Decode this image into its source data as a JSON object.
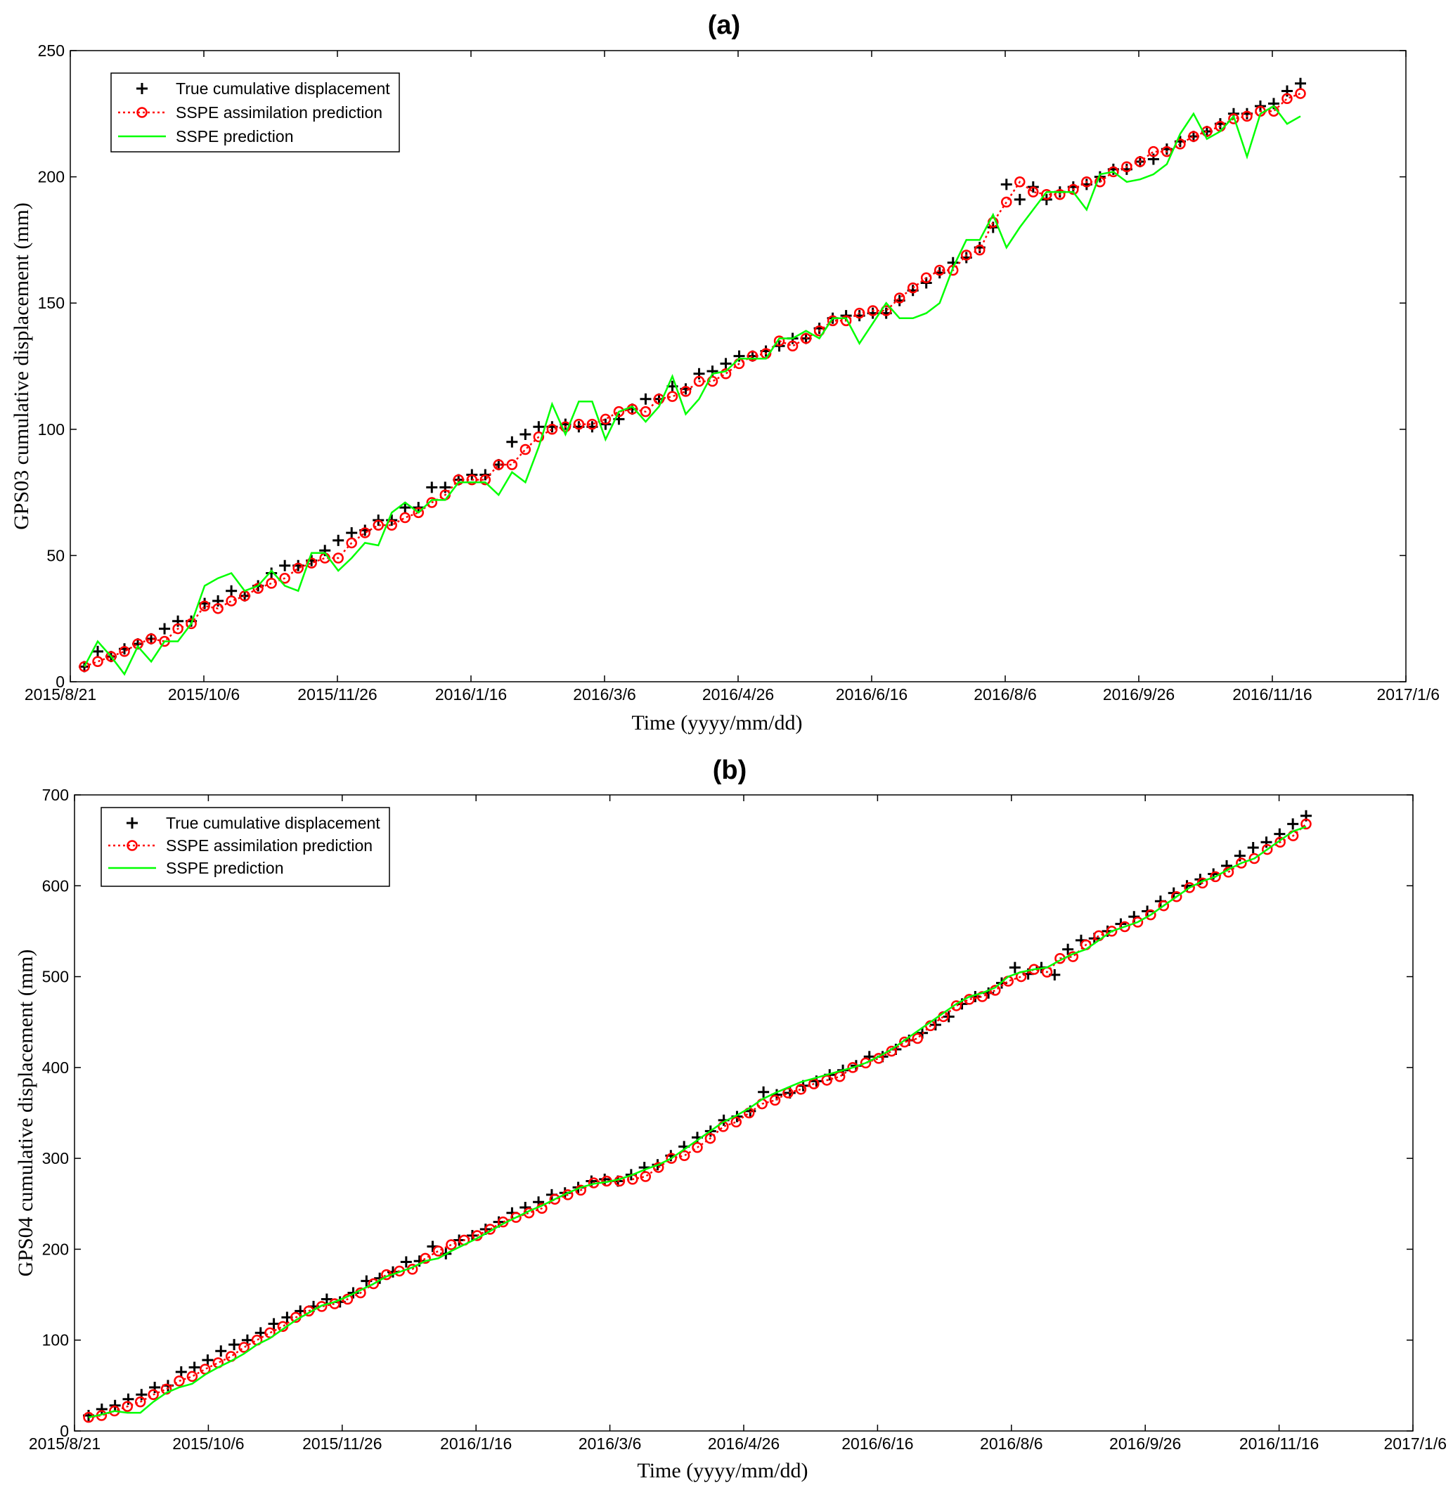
{
  "chart_data": [
    {
      "panel_label": "(a)",
      "type": "line",
      "title": "(a)",
      "xlabel": "Time  (yyyy/mm/dd)",
      "ylabel": "GPS03 cumulative displacement  (mm)",
      "x_tick_labels": [
        "2015/8/21",
        "2015/10/6",
        "2015/11/26",
        "2016/1/16",
        "2016/3/6",
        "2016/4/26",
        "2016/6/16",
        "2016/8/6",
        "2016/9/26",
        "2016/11/16",
        "2017/1/6"
      ],
      "y_tick_labels": [
        "0",
        "50",
        "100",
        "150",
        "200",
        "250"
      ],
      "ylim": [
        0,
        250
      ],
      "grid": false,
      "legend_placement": "top-left",
      "series": [
        {
          "name": "True cumulative displacement",
          "style": "plus-markers",
          "color": "#000000",
          "values": [
            6,
            12,
            10,
            13,
            15,
            17,
            21,
            24,
            24,
            31,
            32,
            36,
            34,
            38,
            43,
            46,
            46,
            48,
            52,
            56,
            59,
            60,
            64,
            64,
            69,
            69,
            77,
            77,
            80,
            82,
            82,
            86,
            95,
            98,
            101,
            101,
            102,
            101,
            101,
            102,
            104,
            108,
            112,
            112,
            117,
            116,
            122,
            123,
            126,
            129,
            129,
            131,
            133,
            136,
            136,
            140,
            144,
            145,
            145,
            146,
            146,
            151,
            155,
            158,
            162,
            166,
            168,
            172,
            180,
            197,
            191,
            196,
            191,
            194,
            196,
            197,
            200,
            203,
            203,
            206,
            207,
            211,
            214,
            216,
            218,
            221,
            225,
            225,
            228,
            229,
            234,
            237
          ]
        },
        {
          "name": "SSPE assimilation prediction",
          "style": "dotted-circles",
          "color": "#ff0000",
          "values": [
            6,
            8,
            10,
            12,
            15,
            17,
            16,
            21,
            23,
            30,
            29,
            32,
            34,
            37,
            39,
            41,
            45,
            47,
            49,
            49,
            55,
            59,
            62,
            62,
            65,
            67,
            71,
            74,
            80,
            80,
            80,
            86,
            86,
            92,
            97,
            100,
            101,
            102,
            102,
            104,
            107,
            108,
            107,
            112,
            113,
            115,
            119,
            119,
            122,
            126,
            129,
            130,
            135,
            133,
            136,
            139,
            143,
            143,
            146,
            147,
            147,
            152,
            156,
            160,
            163,
            163,
            169,
            171,
            182,
            190,
            198,
            194,
            193,
            193,
            195,
            198,
            198,
            202,
            204,
            206,
            210,
            210,
            213,
            216,
            218,
            220,
            223,
            224,
            226,
            226,
            231,
            233
          ]
        },
        {
          "name": "SSPE prediction",
          "style": "solid-line",
          "color": "#00ff00",
          "values": [
            6,
            16,
            10,
            3,
            14,
            8,
            16,
            16,
            23,
            38,
            41,
            43,
            36,
            38,
            44,
            38,
            36,
            51,
            51,
            44,
            49,
            55,
            54,
            67,
            71,
            67,
            72,
            72,
            79,
            79,
            79,
            74,
            83,
            79,
            93,
            110,
            98,
            111,
            111,
            96,
            107,
            109,
            103,
            109,
            121,
            106,
            112,
            122,
            123,
            128,
            128,
            128,
            136,
            136,
            139,
            136,
            144,
            144,
            134,
            142,
            150,
            144,
            144,
            146,
            150,
            164,
            175,
            175,
            185,
            172,
            180,
            187,
            194,
            194,
            194,
            187,
            201,
            202,
            198,
            199,
            201,
            205,
            217,
            225,
            215,
            218,
            224,
            208,
            225,
            228,
            221,
            224
          ]
        }
      ]
    },
    {
      "panel_label": "(b)",
      "type": "line",
      "title": "(b)",
      "xlabel": "Time  (yyyy/mm/dd)",
      "ylabel": "GPS04 cumulative displacement  (mm)",
      "x_tick_labels": [
        "2015/8/21",
        "2015/10/6",
        "2015/11/26",
        "2016/1/16",
        "2016/3/6",
        "2016/4/26",
        "2016/6/16",
        "2016/8/6",
        "2016/9/26",
        "2016/11/16",
        "2017/1/6"
      ],
      "y_tick_labels": [
        "0",
        "100",
        "200",
        "300",
        "400",
        "500",
        "600",
        "700"
      ],
      "ylim": [
        0,
        700
      ],
      "grid": false,
      "legend_placement": "top-left",
      "series": [
        {
          "name": "True cumulative displacement",
          "style": "plus-markers",
          "color": "#000000",
          "values": [
            17,
            24,
            28,
            35,
            40,
            48,
            50,
            65,
            70,
            78,
            88,
            95,
            100,
            108,
            118,
            125,
            132,
            137,
            145,
            142,
            152,
            165,
            168,
            175,
            186,
            187,
            203,
            195,
            210,
            215,
            222,
            230,
            240,
            246,
            252,
            260,
            262,
            268,
            275,
            277,
            275,
            282,
            290,
            293,
            303,
            313,
            323,
            330,
            342,
            346,
            352,
            373,
            370,
            372,
            380,
            385,
            392,
            397,
            402,
            412,
            412,
            420,
            430,
            438,
            447,
            456,
            470,
            478,
            482,
            493,
            510,
            503,
            510,
            502,
            530,
            540,
            542,
            550,
            558,
            566,
            572,
            583,
            592,
            600,
            607,
            613,
            622,
            633,
            642,
            648,
            657,
            668,
            677
          ]
        },
        {
          "name": "SSPE assimilation prediction",
          "style": "dotted-circles",
          "color": "#ff0000",
          "values": [
            15,
            17,
            22,
            27,
            32,
            40,
            46,
            55,
            60,
            68,
            75,
            82,
            92,
            100,
            108,
            115,
            125,
            132,
            137,
            140,
            145,
            152,
            162,
            172,
            176,
            178,
            190,
            198,
            205,
            210,
            215,
            222,
            230,
            235,
            240,
            245,
            255,
            260,
            265,
            273,
            275,
            275,
            277,
            280,
            290,
            300,
            303,
            312,
            322,
            335,
            340,
            350,
            360,
            364,
            372,
            376,
            382,
            386,
            390,
            400,
            405,
            410,
            418,
            428,
            432,
            446,
            456,
            468,
            475,
            478,
            485,
            495,
            500,
            508,
            505,
            520,
            522,
            535,
            545,
            550,
            555,
            560,
            568,
            578,
            588,
            598,
            603,
            610,
            615,
            625,
            630,
            640,
            648,
            655,
            668
          ]
        },
        {
          "name": "SSPE prediction",
          "style": "solid-line",
          "color": "#00ff00",
          "values": [
            15,
            18,
            22,
            20,
            20,
            32,
            42,
            48,
            52,
            62,
            70,
            77,
            85,
            95,
            102,
            112,
            122,
            130,
            138,
            142,
            148,
            155,
            162,
            170,
            175,
            180,
            187,
            190,
            198,
            205,
            212,
            220,
            228,
            235,
            242,
            248,
            255,
            262,
            268,
            272,
            274,
            277,
            282,
            288,
            293,
            300,
            310,
            320,
            330,
            340,
            347,
            355,
            365,
            372,
            378,
            384,
            388,
            392,
            396,
            400,
            405,
            412,
            420,
            430,
            440,
            450,
            460,
            470,
            478,
            482,
            488,
            500,
            505,
            508,
            510,
            518,
            525,
            530,
            540,
            550,
            555,
            560,
            568,
            578,
            588,
            598,
            605,
            610,
            618,
            625,
            630,
            640,
            650,
            660,
            665
          ]
        }
      ]
    }
  ]
}
